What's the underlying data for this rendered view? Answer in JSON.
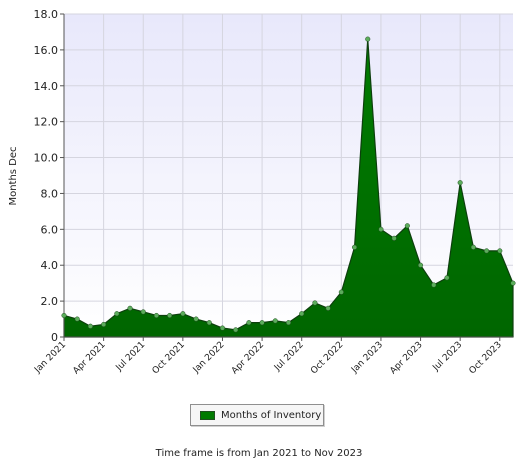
{
  "chart_data": {
    "type": "area",
    "ylabel": "Months Dec",
    "ylim": [
      0,
      18
    ],
    "y_ticks": [
      "0",
      "2.0",
      "4.0",
      "6.0",
      "8.0",
      "10.0",
      "12.0",
      "14.0",
      "16.0",
      "18.0"
    ],
    "y_tick_values": [
      0,
      2,
      4,
      6,
      8,
      10,
      12,
      14,
      16,
      18
    ],
    "x_tick_labels": [
      "Jan 2021",
      "Apr 2021",
      "Jul 2021",
      "Oct 2021",
      "Jan 2022",
      "Apr 2022",
      "Jul 2022",
      "Oct 2022",
      "Jan 2023",
      "Apr 2023",
      "Jul 2023",
      "Oct 2023"
    ],
    "x_tick_indices": [
      0,
      3,
      6,
      9,
      12,
      15,
      18,
      21,
      24,
      27,
      30,
      33
    ],
    "grid": true,
    "legend_position": "bottom-center",
    "series": [
      {
        "name": "Months of Inventory",
        "color": "#007a00",
        "x": [
          "Jan 2021",
          "Feb 2021",
          "Mar 2021",
          "Apr 2021",
          "May 2021",
          "Jun 2021",
          "Jul 2021",
          "Aug 2021",
          "Sep 2021",
          "Oct 2021",
          "Nov 2021",
          "Dec 2021",
          "Jan 2022",
          "Feb 2022",
          "Mar 2022",
          "Apr 2022",
          "May 2022",
          "Jun 2022",
          "Jul 2022",
          "Aug 2022",
          "Sep 2022",
          "Oct 2022",
          "Nov 2022",
          "Dec 2022",
          "Jan 2023",
          "Feb 2023",
          "Mar 2023",
          "Apr 2023",
          "May 2023",
          "Jun 2023",
          "Jul 2023",
          "Aug 2023",
          "Sep 2023",
          "Oct 2023",
          "Nov 2023"
        ],
        "values": [
          1.2,
          1.0,
          0.6,
          0.7,
          1.3,
          1.6,
          1.4,
          1.2,
          1.2,
          1.3,
          1.0,
          0.8,
          0.5,
          0.4,
          0.8,
          0.8,
          0.9,
          0.8,
          1.3,
          1.9,
          1.6,
          2.5,
          5.0,
          16.6,
          6.0,
          5.5,
          6.2,
          4.0,
          2.9,
          3.3,
          8.6,
          5.0,
          4.8,
          4.8,
          3.0
        ]
      }
    ]
  },
  "legend": {
    "label": "Months of Inventory"
  },
  "footer": {
    "text": "Time frame is from Jan 2021 to Nov 2023"
  }
}
